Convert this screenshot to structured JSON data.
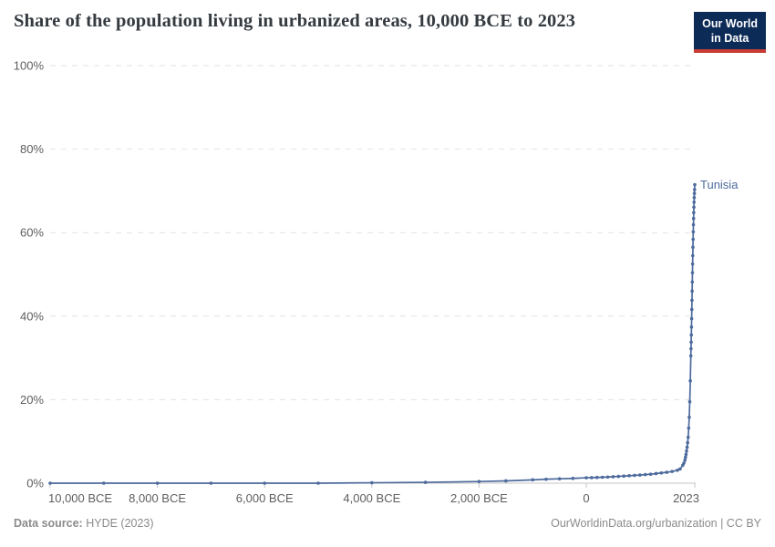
{
  "header": {
    "title": "Share of the population living in urbanized areas, 10,000 BCE to 2023",
    "logo": {
      "line1": "Our World",
      "line2": "in Data",
      "bg_color": "#0d2b57",
      "bar_color": "#c93c35"
    }
  },
  "footer": {
    "source_label": "Data source:",
    "source_value": " HYDE (2023)",
    "citation": "OurWorldinData.org/urbanization | CC BY"
  },
  "chart_data": {
    "type": "line",
    "title": "Share of the population living in urbanized areas, 10,000 BCE to 2023",
    "xlabel": "",
    "ylabel": "",
    "x_domain": [
      -10000,
      2023
    ],
    "y_domain": [
      0,
      100
    ],
    "grid": {
      "horizontal": true,
      "style": "dashed",
      "color": "#e2e2e2",
      "axis_color": "#c4c4c4"
    },
    "legend_position": "end-of-line-label",
    "y_ticks": [
      {
        "value": 0,
        "label": "0%"
      },
      {
        "value": 20,
        "label": "20%"
      },
      {
        "value": 40,
        "label": "40%"
      },
      {
        "value": 60,
        "label": "60%"
      },
      {
        "value": 80,
        "label": "80%"
      },
      {
        "value": 100,
        "label": "100%"
      }
    ],
    "x_ticks": [
      {
        "value": -10000,
        "label": "10,000 BCE"
      },
      {
        "value": -8000,
        "label": "8,000 BCE"
      },
      {
        "value": -6000,
        "label": "6,000 BCE"
      },
      {
        "value": -4000,
        "label": "4,000 BCE"
      },
      {
        "value": -2000,
        "label": "2,000 BCE"
      },
      {
        "value": 0,
        "label": "0"
      },
      {
        "value": 2023,
        "label": "2023"
      }
    ],
    "series": [
      {
        "name": "Tunisia",
        "color": "#4c6a9c",
        "marker": "circle",
        "points": [
          [
            -10000,
            0
          ],
          [
            -9000,
            0
          ],
          [
            -8000,
            0
          ],
          [
            -7000,
            0
          ],
          [
            -6000,
            0
          ],
          [
            -5000,
            0
          ],
          [
            -4000,
            0.1
          ],
          [
            -3000,
            0.2
          ],
          [
            -2000,
            0.4
          ],
          [
            -1500,
            0.55
          ],
          [
            -1000,
            0.8
          ],
          [
            -750,
            0.95
          ],
          [
            -500,
            1.05
          ],
          [
            -250,
            1.15
          ],
          [
            0,
            1.3
          ],
          [
            100,
            1.33
          ],
          [
            200,
            1.37
          ],
          [
            300,
            1.42
          ],
          [
            400,
            1.47
          ],
          [
            500,
            1.55
          ],
          [
            600,
            1.62
          ],
          [
            700,
            1.7
          ],
          [
            800,
            1.78
          ],
          [
            900,
            1.87
          ],
          [
            1000,
            1.95
          ],
          [
            1100,
            2.05
          ],
          [
            1200,
            2.15
          ],
          [
            1300,
            2.3
          ],
          [
            1400,
            2.45
          ],
          [
            1500,
            2.6
          ],
          [
            1600,
            2.8
          ],
          [
            1700,
            3.1
          ],
          [
            1750,
            3.4
          ],
          [
            1800,
            4.3
          ],
          [
            1820,
            4.8
          ],
          [
            1840,
            5.5
          ],
          [
            1850,
            6.2
          ],
          [
            1860,
            6.9
          ],
          [
            1870,
            7.7
          ],
          [
            1880,
            8.6
          ],
          [
            1890,
            9.7
          ],
          [
            1900,
            11.0
          ],
          [
            1910,
            13.2
          ],
          [
            1920,
            15.8
          ],
          [
            1930,
            19.5
          ],
          [
            1940,
            24.5
          ],
          [
            1950,
            30.5
          ],
          [
            1953,
            32.2
          ],
          [
            1956,
            33.8
          ],
          [
            1959,
            35.5
          ],
          [
            1962,
            37.4
          ],
          [
            1965,
            39.4
          ],
          [
            1968,
            41.6
          ],
          [
            1971,
            43.8
          ],
          [
            1974,
            46.0
          ],
          [
            1977,
            48.2
          ],
          [
            1980,
            50.4
          ],
          [
            1983,
            52.5
          ],
          [
            1986,
            54.5
          ],
          [
            1989,
            56.5
          ],
          [
            1992,
            58.4
          ],
          [
            1995,
            60.2
          ],
          [
            1998,
            61.9
          ],
          [
            2001,
            63.4
          ],
          [
            2004,
            64.8
          ],
          [
            2007,
            66.1
          ],
          [
            2010,
            67.3
          ],
          [
            2013,
            68.4
          ],
          [
            2016,
            69.4
          ],
          [
            2019,
            70.3
          ],
          [
            2023,
            71.5
          ]
        ]
      }
    ]
  }
}
